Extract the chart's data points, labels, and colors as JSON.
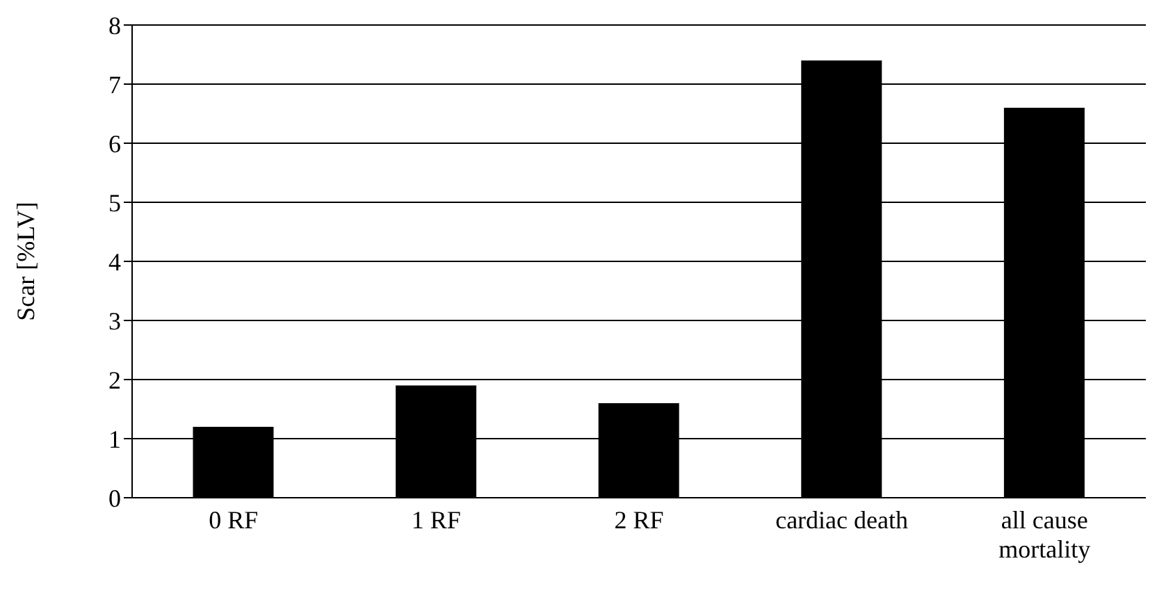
{
  "chart_data": {
    "type": "bar",
    "ylabel": "Scar [%LV]",
    "categories": [
      "0 RF",
      "1 RF",
      "2 RF",
      "cardiac death",
      "all cause mortality"
    ],
    "values": [
      1.2,
      1.9,
      1.6,
      7.4,
      6.6
    ],
    "color": "#000000",
    "ylim": [
      0,
      8
    ],
    "yticks": [
      0,
      1,
      2,
      3,
      4,
      5,
      6,
      7,
      8
    ],
    "grid": "y"
  }
}
